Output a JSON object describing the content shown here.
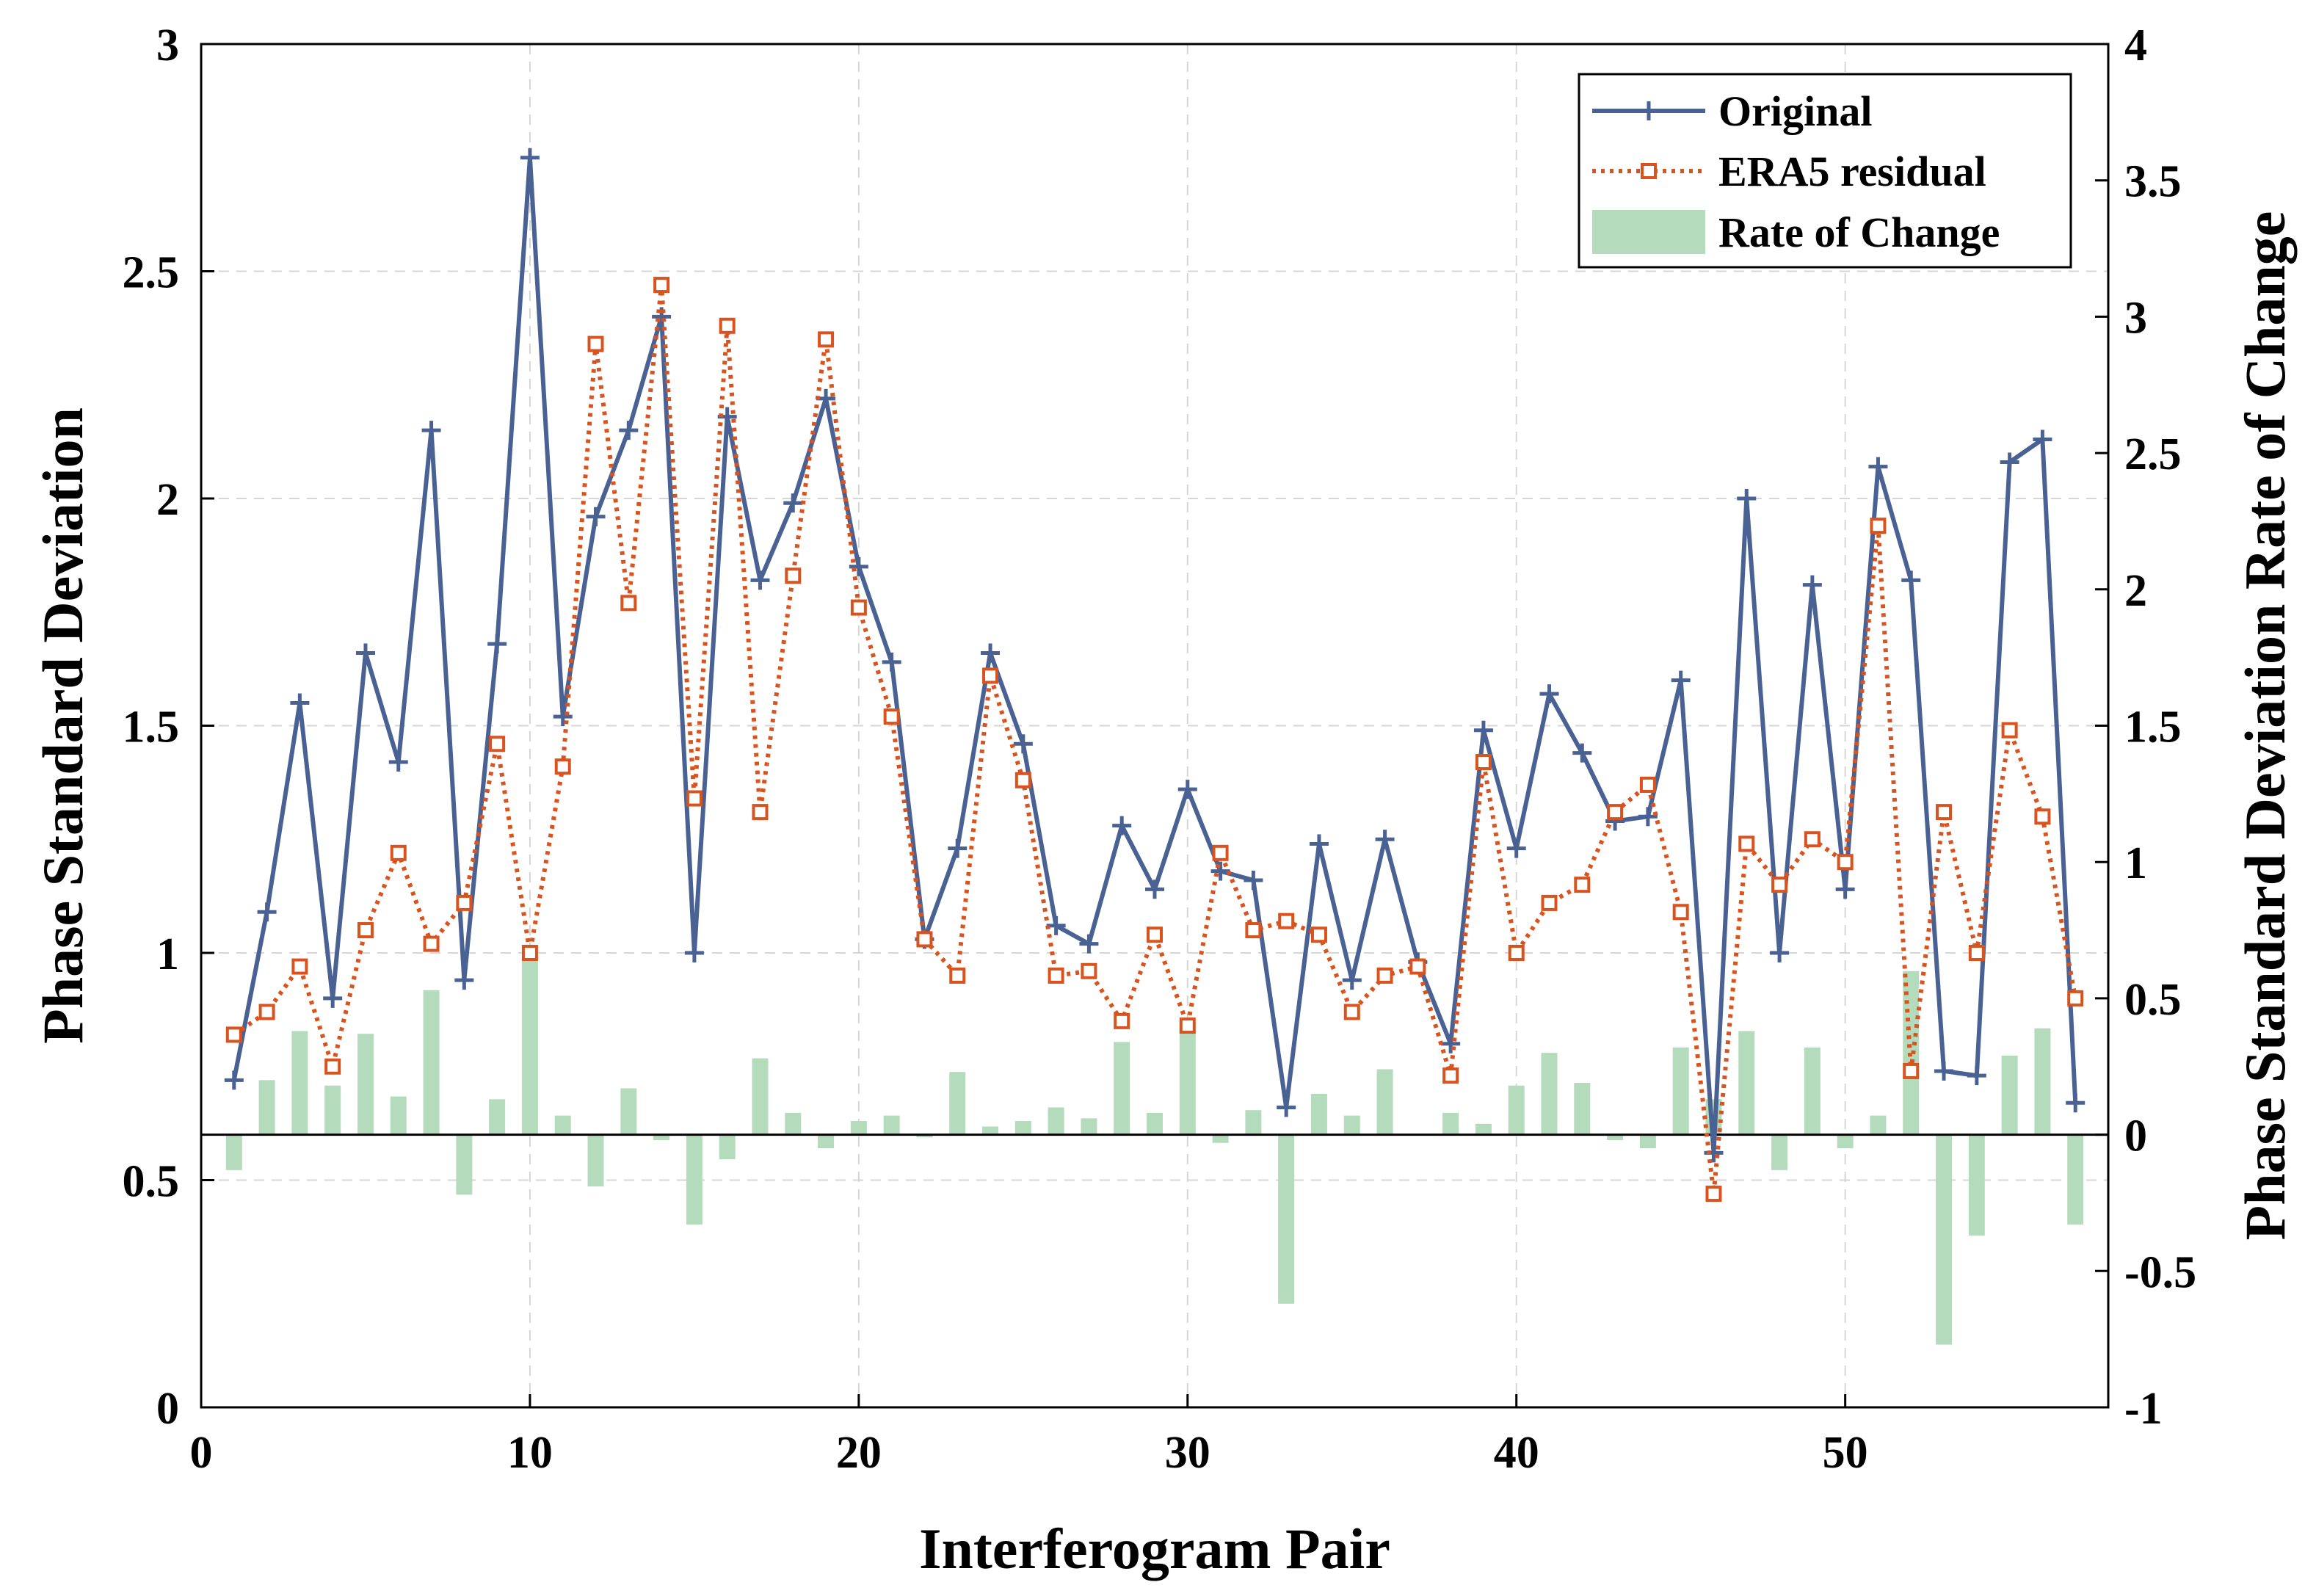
{
  "chart_data": {
    "type": "line",
    "title": "",
    "xlabel": "Interferogram Pair",
    "ylabel": "Phase Standard Deviation",
    "ylabel_right": "Phase Standard Deviation Rate of Change",
    "xlim": [
      0,
      58
    ],
    "ylim": [
      0,
      3
    ],
    "ylim_right": [
      -1,
      4
    ],
    "xticks": [
      "0",
      "10",
      "20",
      "30",
      "40",
      "50"
    ],
    "yticks": [
      "0",
      "0.5",
      "1",
      "1.5",
      "2",
      "2.5",
      "3"
    ],
    "yticks_right": [
      "-1",
      "-0.5",
      "0",
      "0.5",
      "1",
      "1.5",
      "2",
      "2.5",
      "3",
      "3.5",
      "4"
    ],
    "x": [
      1,
      2,
      3,
      4,
      5,
      6,
      7,
      8,
      9,
      10,
      11,
      12,
      13,
      14,
      15,
      16,
      17,
      18,
      19,
      20,
      21,
      22,
      23,
      24,
      25,
      26,
      27,
      28,
      29,
      30,
      31,
      32,
      33,
      34,
      35,
      36,
      37,
      38,
      39,
      40,
      41,
      42,
      43,
      44,
      45,
      46,
      47,
      48,
      49,
      50,
      51,
      52,
      53,
      54,
      55,
      56,
      57
    ],
    "series": [
      {
        "name": "Original",
        "axis": "left",
        "color": "#4a6293",
        "marker": "plus",
        "values": [
          0.72,
          1.09,
          1.55,
          0.9,
          1.66,
          1.42,
          2.15,
          0.94,
          1.68,
          2.75,
          1.52,
          1.96,
          2.15,
          2.4,
          1.0,
          2.18,
          1.82,
          1.99,
          2.22,
          1.85,
          1.64,
          1.03,
          1.23,
          1.66,
          1.46,
          1.06,
          1.02,
          1.28,
          1.14,
          1.36,
          1.18,
          1.16,
          0.66,
          1.24,
          0.94,
          1.25,
          0.98,
          0.8,
          1.49,
          1.23,
          1.57,
          1.44,
          1.29,
          1.3,
          1.6,
          0.56,
          2.0,
          1.0,
          1.81,
          1.14,
          2.07,
          1.82,
          0.74,
          0.73,
          2.08,
          2.13,
          0.67
        ]
      },
      {
        "name": "ERA5 residual",
        "axis": "left",
        "color": "#d9531e",
        "marker": "square",
        "values": [
          0.82,
          0.87,
          0.97,
          0.75,
          1.05,
          1.22,
          1.02,
          1.11,
          1.46,
          1.0,
          1.41,
          2.34,
          1.77,
          2.47,
          1.34,
          2.38,
          1.31,
          1.83,
          2.35,
          1.76,
          1.52,
          1.03,
          0.95,
          1.61,
          1.38,
          0.95,
          0.96,
          0.85,
          1.04,
          0.84,
          1.22,
          1.05,
          1.07,
          1.04,
          0.87,
          0.95,
          0.97,
          0.73,
          1.42,
          1.0,
          1.11,
          1.15,
          1.31,
          1.37,
          1.09,
          0.47,
          1.24,
          1.15,
          1.25,
          1.2,
          1.94,
          0.74,
          1.31,
          1.0,
          1.49,
          1.3,
          0.9
        ]
      },
      {
        "name": "Rate of Change",
        "axis": "right",
        "type": "bar",
        "color": "#b5dbbd",
        "values": [
          -0.13,
          0.2,
          0.38,
          0.18,
          0.37,
          0.14,
          0.53,
          -0.22,
          0.13,
          0.65,
          0.07,
          -0.19,
          0.17,
          -0.02,
          -0.33,
          -0.09,
          0.28,
          0.08,
          -0.05,
          0.05,
          0.07,
          -0.01,
          0.23,
          0.03,
          0.05,
          0.1,
          0.06,
          0.34,
          0.08,
          0.41,
          -0.03,
          0.09,
          -0.62,
          0.15,
          0.07,
          0.24,
          0.0,
          0.08,
          0.04,
          0.18,
          0.3,
          0.19,
          -0.02,
          -0.05,
          0.32,
          0.13,
          0.38,
          -0.13,
          0.32,
          -0.05,
          0.07,
          0.6,
          -0.77,
          -0.37,
          0.29,
          0.39,
          -0.33
        ]
      }
    ],
    "legend": {
      "position": "top-right",
      "entries": [
        "Original",
        "ERA5 residual",
        "Rate of Change"
      ]
    },
    "grid": true
  }
}
